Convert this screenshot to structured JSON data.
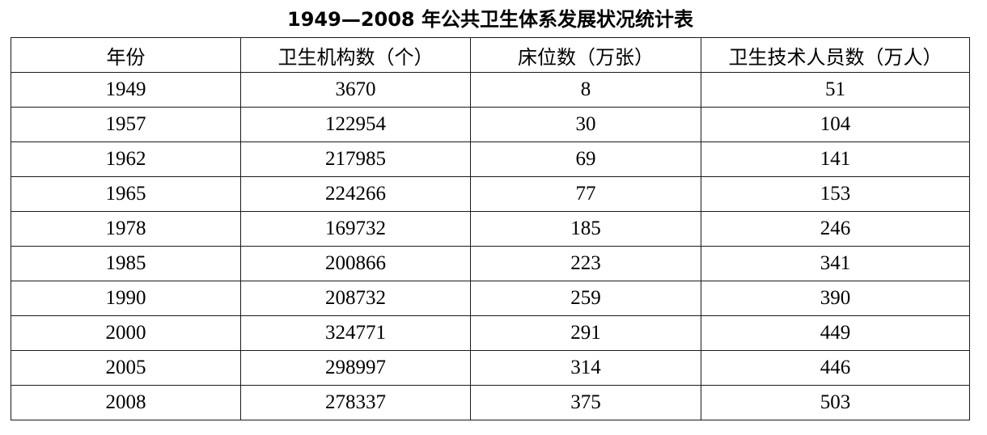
{
  "title": "1949—2008 年公共卫生体系发展状况统计表",
  "table": {
    "headers": [
      "年份",
      "卫生机构数（个）",
      "床位数（万张）",
      "卫生技术人员数（万人）"
    ],
    "rows": [
      [
        "1949",
        "3670",
        "8",
        "51"
      ],
      [
        "1957",
        "122954",
        "30",
        "104"
      ],
      [
        "1962",
        "217985",
        "69",
        "141"
      ],
      [
        "1965",
        "224266",
        "77",
        "153"
      ],
      [
        "1978",
        "169732",
        "185",
        "246"
      ],
      [
        "1985",
        "200866",
        "223",
        "341"
      ],
      [
        "1990",
        "208732",
        "259",
        "390"
      ],
      [
        "2000",
        "324771",
        "291",
        "449"
      ],
      [
        "2005",
        "298997",
        "314",
        "446"
      ],
      [
        "2008",
        "278337",
        "375",
        "503"
      ]
    ]
  }
}
